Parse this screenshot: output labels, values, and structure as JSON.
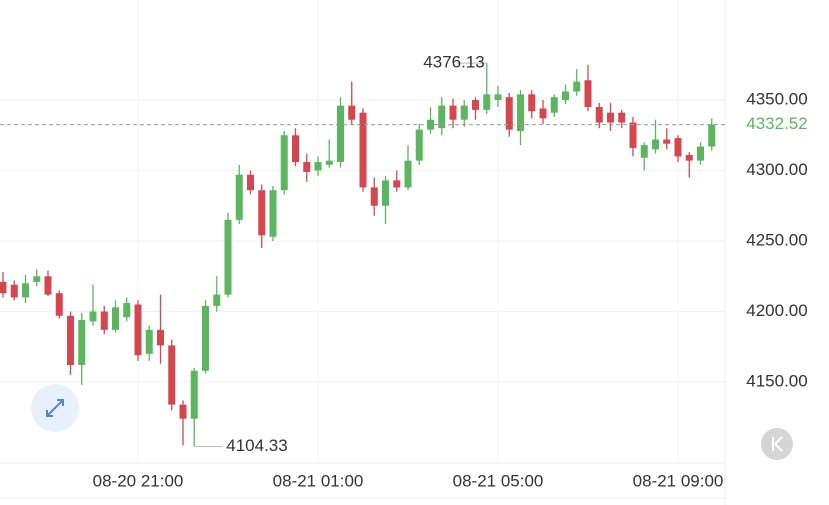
{
  "chart_data": {
    "type": "candlestick",
    "categories": [
      null,
      null,
      null,
      null,
      null,
      null,
      null,
      null,
      null,
      null,
      null,
      null,
      "08-20 21:00",
      null,
      null,
      null,
      null,
      null,
      null,
      null,
      null,
      null,
      null,
      null,
      null,
      null,
      null,
      null,
      "08-21 01:00",
      null,
      null,
      null,
      null,
      null,
      null,
      null,
      null,
      null,
      null,
      null,
      null,
      null,
      null,
      null,
      "08-21 05:00",
      null,
      null,
      null,
      null,
      null,
      null,
      null,
      null,
      null,
      null,
      null,
      null,
      null,
      null,
      null,
      "08-21 09:00",
      null,
      null,
      null
    ],
    "open": [
      4221,
      4219,
      4210,
      4221,
      4225,
      4213,
      4197,
      4162,
      4193,
      4200,
      4187,
      4196,
      4205,
      4170,
      4187,
      4176,
      4134,
      4124,
      4158,
      4204,
      4212,
      4265,
      4297,
      4286,
      4253,
      4286,
      4325,
      4306,
      4300,
      4304,
      4306,
      4346,
      4341,
      4288,
      4275,
      4293,
      4288,
      4307,
      4329,
      4330,
      4346,
      4336,
      4350,
      4343,
      4350,
      4352,
      4328,
      4354,
      4344,
      4341,
      4350,
      4356,
      4364,
      4345,
      4341,
      4341,
      4334,
      4309,
      4315,
      4322,
      4323,
      4311,
      4307,
      4317
    ],
    "high": [
      4228,
      4222,
      4226,
      4230,
      4229,
      4215,
      4200,
      4199,
      4219,
      4204,
      4208,
      4210,
      4208,
      4190,
      4212,
      4180,
      4137,
      4160,
      4208,
      4225,
      4270,
      4304,
      4300,
      4290,
      4289,
      4328,
      4330,
      4312,
      4310,
      4322,
      4352,
      4363,
      4344,
      4295,
      4296,
      4300,
      4318,
      4333,
      4345,
      4352,
      4351,
      4350,
      4352,
      4376.13,
      4360,
      4355,
      4357,
      4357,
      4350,
      4354,
      4361,
      4372,
      4375,
      4348,
      4348,
      4343,
      4338,
      4320,
      4336,
      4330,
      4325,
      4313,
      4320,
      4337
    ],
    "low": [
      4210,
      4208,
      4206,
      4218,
      4211,
      4195,
      4155,
      4148,
      4190,
      4184,
      4185,
      4193,
      4165,
      4165,
      4163,
      4130,
      4105,
      4104.33,
      4156,
      4200,
      4210,
      4262,
      4283,
      4245,
      4250,
      4283,
      4303,
      4292,
      4296,
      4302,
      4302,
      4333,
      4285,
      4268,
      4262,
      4285,
      4286,
      4304,
      4326,
      4325,
      4330,
      4331,
      4336,
      4340,
      4345,
      4324,
      4318,
      4337,
      4333,
      4338,
      4347,
      4353,
      4342,
      4330,
      4328,
      4330,
      4310,
      4300,
      4312,
      4315,
      4306,
      4295,
      4304,
      4314
    ],
    "close": [
      4213,
      4210,
      4220,
      4225,
      4212,
      4197,
      4162,
      4194,
      4200,
      4187,
      4203,
      4206,
      4169,
      4187,
      4176,
      4134,
      4124,
      4158,
      4204,
      4212,
      4265,
      4297,
      4286,
      4254,
      4286,
      4325,
      4306,
      4299,
      4306,
      4307,
      4346,
      4336,
      4288,
      4275,
      4293,
      4288,
      4307,
      4329,
      4336,
      4346,
      4336,
      4346,
      4343,
      4354,
      4354,
      4329,
      4354,
      4342,
      4337,
      4352,
      4356,
      4363,
      4345,
      4334,
      4334,
      4334,
      4316,
      4318,
      4322,
      4319,
      4310,
      4307,
      4317,
      4332.52
    ],
    "ylim": [
      4092.6,
      4420.9
    ],
    "yticks": [
      {
        "value": 4150,
        "label": "4150.00"
      },
      {
        "value": 4200,
        "label": "4200.00"
      },
      {
        "value": 4250,
        "label": "4250.00"
      },
      {
        "value": 4300,
        "label": "4300.00"
      },
      {
        "value": 4350,
        "label": "4350.00"
      }
    ],
    "up_color": "#5cb660",
    "down_color": "#d4474f",
    "last_price": 4332.52,
    "max_label": 4376.13,
    "min_label": 4104.33,
    "grid": true
  }
}
